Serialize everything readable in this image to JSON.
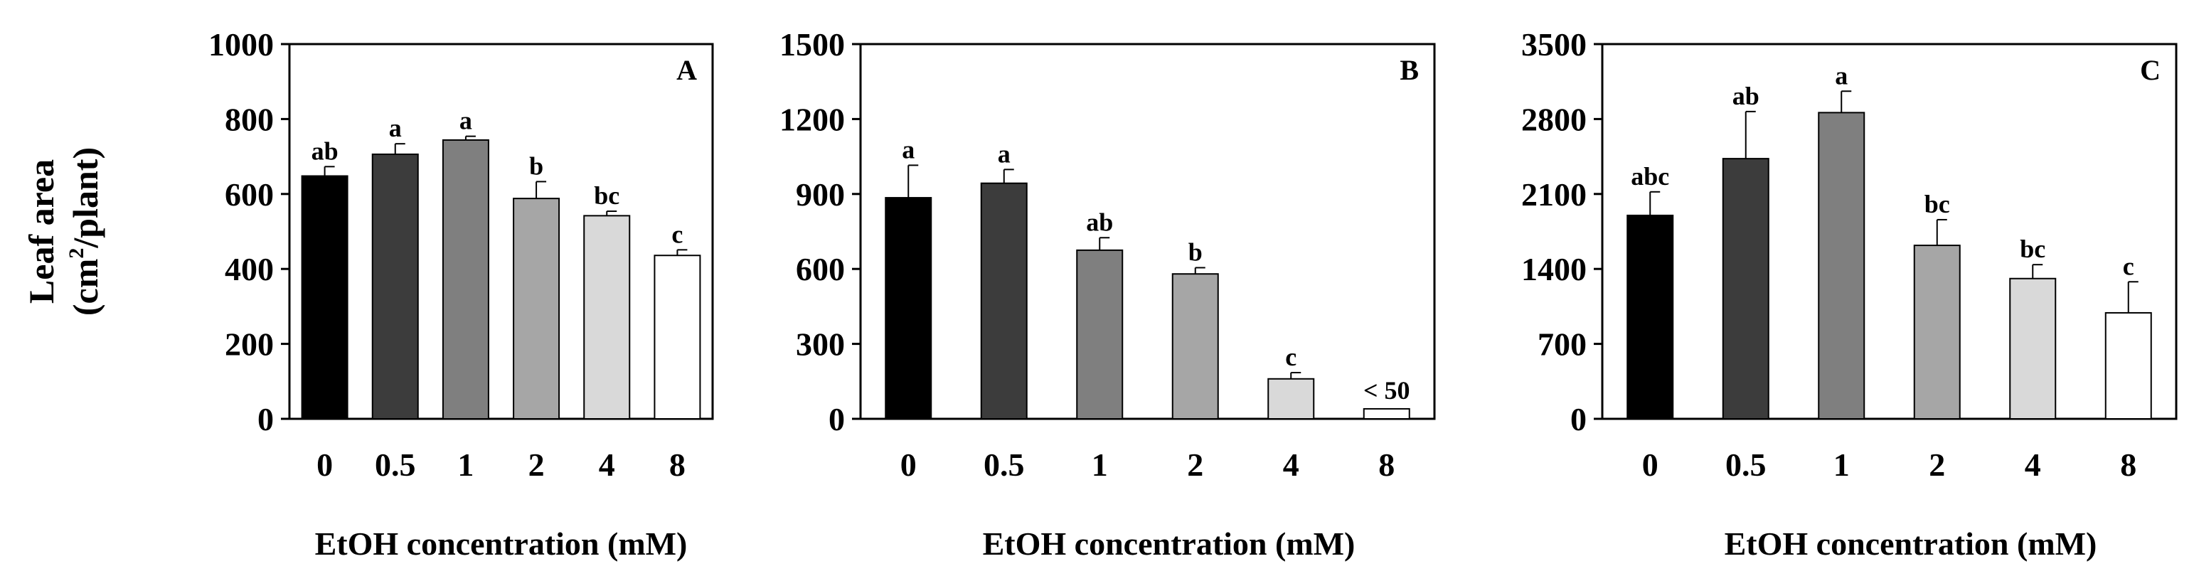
{
  "chart_data": [
    {
      "type": "bar",
      "panel": "A",
      "categories": [
        "0",
        "0.5",
        "1",
        "2",
        "4",
        "8"
      ],
      "values": [
        648,
        706,
        744,
        588,
        542,
        436
      ],
      "errors": [
        25,
        28,
        10,
        45,
        12,
        15
      ],
      "significance": [
        "ab",
        "a",
        "a",
        "b",
        "bc",
        "c"
      ],
      "ylim": [
        0,
        1000
      ],
      "yticks": [
        "0",
        "200",
        "400",
        "600",
        "800",
        "1000"
      ],
      "ylabel_line1": "Leaf area",
      "ylabel_line2_pre": "(cm",
      "ylabel_sup": "2",
      "ylabel_line2_post": "/plant)",
      "xlabel": "EtOH concentration (mM)",
      "bar_colors": [
        "#000000",
        "#3c3c3c",
        "#7f7f7f",
        "#a6a6a6",
        "#d9d9d9",
        "#ffffff"
      ]
    },
    {
      "type": "bar",
      "panel": "B",
      "categories": [
        "0",
        "0.5",
        "1",
        "2",
        "4",
        "8"
      ],
      "values": [
        885,
        943,
        675,
        580,
        160,
        40
      ],
      "errors": [
        130,
        55,
        50,
        25,
        25,
        0
      ],
      "significance": [
        "a",
        "a",
        "ab",
        "b",
        "c",
        "< 50"
      ],
      "ylim": [
        0,
        1500
      ],
      "yticks": [
        "0",
        "300",
        "600",
        "900",
        "1200",
        "1500"
      ],
      "xlabel": "EtOH concentration (mM)",
      "bar_colors": [
        "#000000",
        "#3c3c3c",
        "#7f7f7f",
        "#a6a6a6",
        "#d9d9d9",
        "#ffffff"
      ]
    },
    {
      "type": "bar",
      "panel": "C",
      "categories": [
        "0",
        "0.5",
        "1",
        "2",
        "4",
        "8"
      ],
      "values": [
        1900,
        2430,
        2860,
        1620,
        1310,
        990
      ],
      "errors": [
        220,
        440,
        200,
        240,
        130,
        290
      ],
      "significance": [
        "abc",
        "ab",
        "a",
        "bc",
        "bc",
        "c"
      ],
      "ylim": [
        0,
        3500
      ],
      "yticks": [
        "0",
        "700",
        "1400",
        "2100",
        "2800",
        "3500"
      ],
      "xlabel": "EtOH concentration (mM)",
      "bar_colors": [
        "#000000",
        "#3c3c3c",
        "#7f7f7f",
        "#a6a6a6",
        "#d9d9d9",
        "#ffffff"
      ]
    }
  ]
}
